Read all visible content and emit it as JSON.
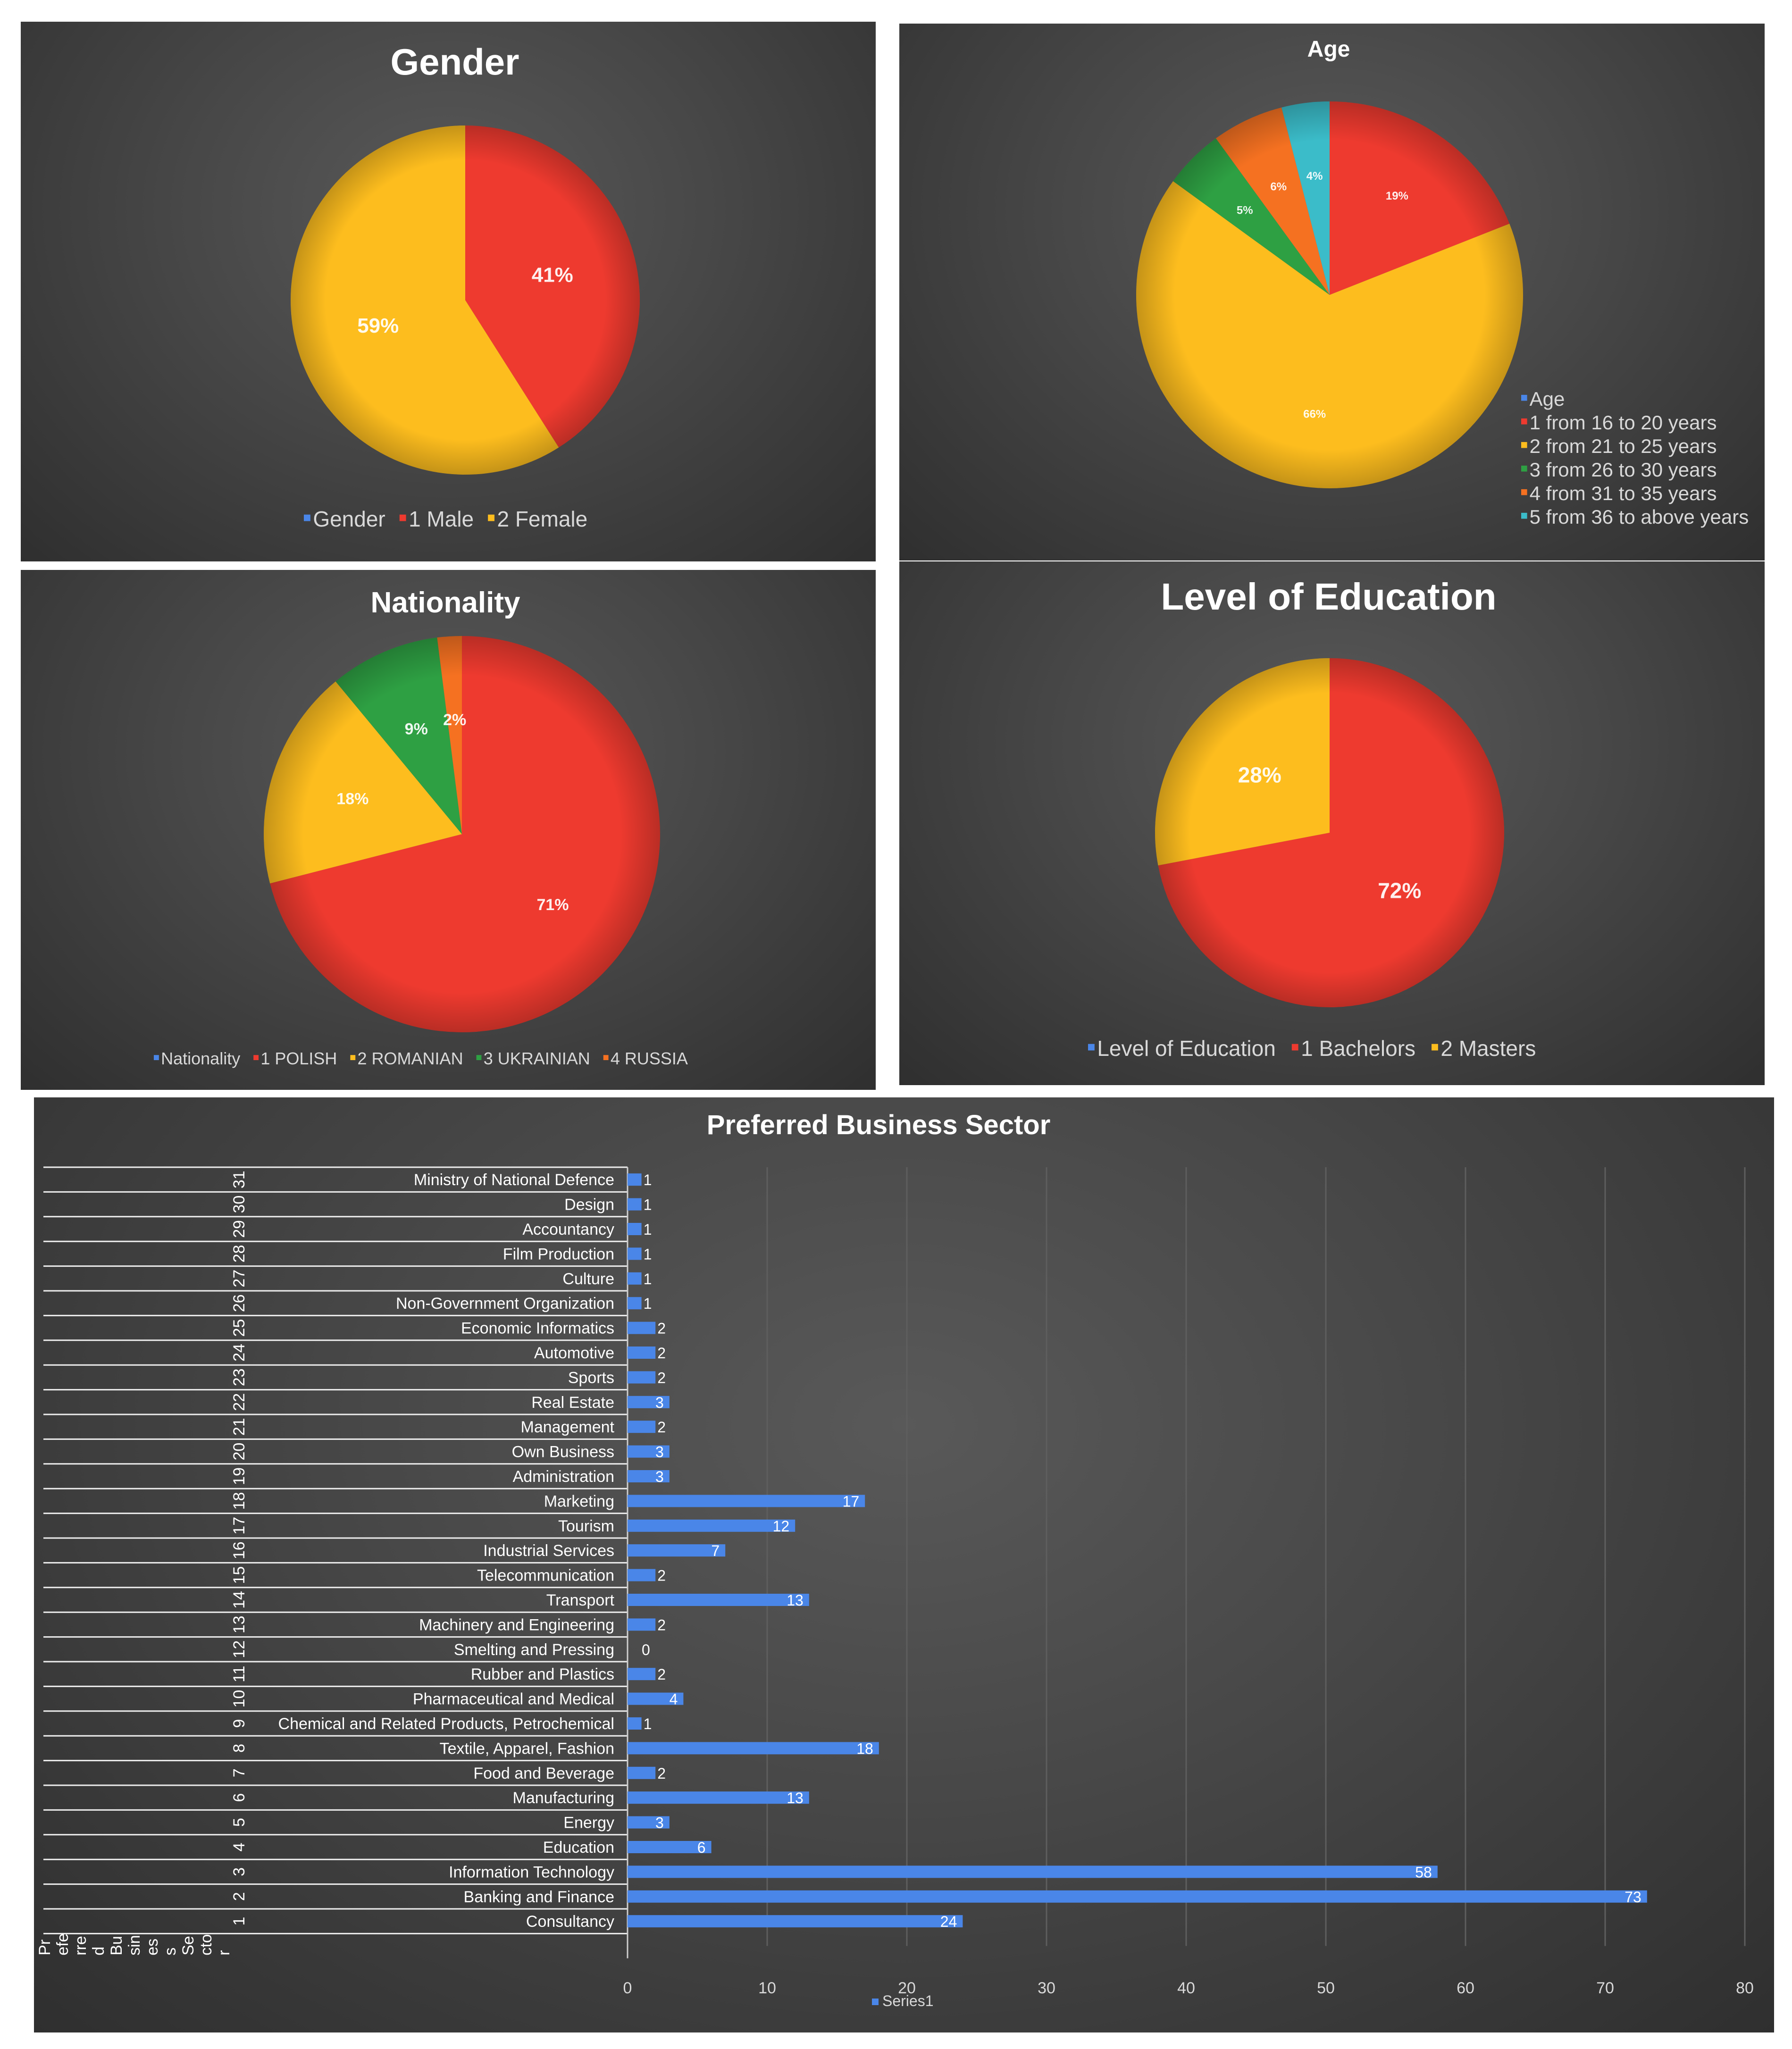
{
  "colors": {
    "blue": "#4a86e8",
    "red": "#ee3a2f",
    "yellow": "#fdbd1e",
    "green": "#2ea043",
    "orange": "#f57121",
    "teal": "#3bbcc9",
    "text": "#ffffff",
    "axis_text": "#d9d9d9",
    "grid": "#5e5e5e"
  },
  "chart_data": [
    {
      "id": "gender",
      "type": "pie",
      "title": "Gender",
      "legend_position": "bottom",
      "legend": [
        "Gender",
        "1 Male",
        "2 Female"
      ],
      "slices": [
        {
          "label": "1 Male",
          "value": 41,
          "display": "41%",
          "color": "red"
        },
        {
          "label": "2 Female",
          "value": 59,
          "display": "59%",
          "color": "yellow"
        }
      ]
    },
    {
      "id": "age",
      "type": "pie",
      "title": "Age",
      "legend_position": "bottom-right",
      "legend": [
        "Age",
        "1 from 16 to 20 years",
        "2 from 21 to 25 years",
        "3 from 26 to 30 years",
        "4 from 31 to 35 years",
        "5 from 36 to above years"
      ],
      "slices": [
        {
          "label": "1 from 16 to 20 years",
          "value": 19,
          "display": "19%",
          "color": "red"
        },
        {
          "label": "2 from 21 to 25 years",
          "value": 66,
          "display": "66%",
          "color": "yellow"
        },
        {
          "label": "3 from 26 to 30 years",
          "value": 5,
          "display": "5%",
          "color": "green"
        },
        {
          "label": "4 from 31 to 35 years",
          "value": 6,
          "display": "6%",
          "color": "orange"
        },
        {
          "label": "5 from 36 to above years",
          "value": 4,
          "display": "4%",
          "color": "teal"
        }
      ]
    },
    {
      "id": "nationality",
      "type": "pie",
      "title": "Nationality",
      "legend_position": "bottom",
      "legend": [
        "Nationality",
        "1 POLISH",
        "2 ROMANIAN",
        "3 UKRAINIAN",
        "4 RUSSIA"
      ],
      "slices": [
        {
          "label": "1 POLISH",
          "value": 71,
          "display": "71%",
          "color": "red"
        },
        {
          "label": "2 ROMANIAN",
          "value": 18,
          "display": "18%",
          "color": "yellow"
        },
        {
          "label": "3 UKRAINIAN",
          "value": 9,
          "display": "9%",
          "color": "green"
        },
        {
          "label": "4 RUSSIA",
          "value": 2,
          "display": "2%",
          "color": "orange"
        }
      ]
    },
    {
      "id": "education",
      "type": "pie",
      "title": "Level of Education",
      "legend_position": "bottom",
      "legend": [
        "Level of Education",
        "1 Bachelors",
        "2 Masters"
      ],
      "slices": [
        {
          "label": "1 Bachelors",
          "value": 72,
          "display": "72%",
          "color": "red"
        },
        {
          "label": "2 Masters",
          "value": 28,
          "display": "28%",
          "color": "yellow"
        }
      ]
    },
    {
      "id": "sector",
      "type": "bar",
      "orientation": "horizontal",
      "title": "Preferred Business Sector",
      "series_name": "Series1",
      "axis_title_vertical": "Preferred Business Sector",
      "xlim": [
        0,
        80
      ],
      "xticks": [
        0,
        10,
        20,
        30,
        40,
        50,
        60,
        70,
        80
      ],
      "grid": true,
      "legend_position": "bottom",
      "categories": [
        {
          "num": "1",
          "name": "Consultancy",
          "value": 24
        },
        {
          "num": "2",
          "name": "Banking and Finance",
          "value": 73
        },
        {
          "num": "3",
          "name": "Information Technology",
          "value": 58
        },
        {
          "num": "4",
          "name": "Education",
          "value": 6
        },
        {
          "num": "5",
          "name": "Energy",
          "value": 3
        },
        {
          "num": "6",
          "name": "Manufacturing",
          "value": 13
        },
        {
          "num": "7",
          "name": "Food and Beverage",
          "value": 2
        },
        {
          "num": "8",
          "name": "Textile, Apparel, Fashion",
          "value": 18
        },
        {
          "num": "9",
          "name": "Chemical and Related Products, Petrochemical",
          "value": 1
        },
        {
          "num": "10",
          "name": "Pharmaceutical and Medical",
          "value": 4
        },
        {
          "num": "11",
          "name": "Rubber and Plastics",
          "value": 2
        },
        {
          "num": "12",
          "name": "Smelting and Pressing",
          "value": 0
        },
        {
          "num": "13",
          "name": "Machinery and Engineering",
          "value": 2
        },
        {
          "num": "14",
          "name": "Transport",
          "value": 13
        },
        {
          "num": "15",
          "name": "Telecommunication",
          "value": 2
        },
        {
          "num": "16",
          "name": "Industrial Services",
          "value": 7
        },
        {
          "num": "17",
          "name": "Tourism",
          "value": 12
        },
        {
          "num": "18",
          "name": "Marketing",
          "value": 17
        },
        {
          "num": "19",
          "name": "Administration",
          "value": 3
        },
        {
          "num": "20",
          "name": "Own Business",
          "value": 3
        },
        {
          "num": "21",
          "name": "Management",
          "value": 2
        },
        {
          "num": "22",
          "name": "Real Estate",
          "value": 3
        },
        {
          "num": "23",
          "name": "Sports",
          "value": 2
        },
        {
          "num": "24",
          "name": "Automotive",
          "value": 2
        },
        {
          "num": "25",
          "name": "Economic Informatics",
          "value": 2
        },
        {
          "num": "26",
          "name": "Non-Government Organization",
          "value": 1
        },
        {
          "num": "27",
          "name": "Culture",
          "value": 1
        },
        {
          "num": "28",
          "name": "Film Production",
          "value": 1
        },
        {
          "num": "29",
          "name": "Accountancy",
          "value": 1
        },
        {
          "num": "30",
          "name": "Design",
          "value": 1
        },
        {
          "num": "31",
          "name": "Ministry of National Defence",
          "value": 1
        }
      ]
    }
  ]
}
